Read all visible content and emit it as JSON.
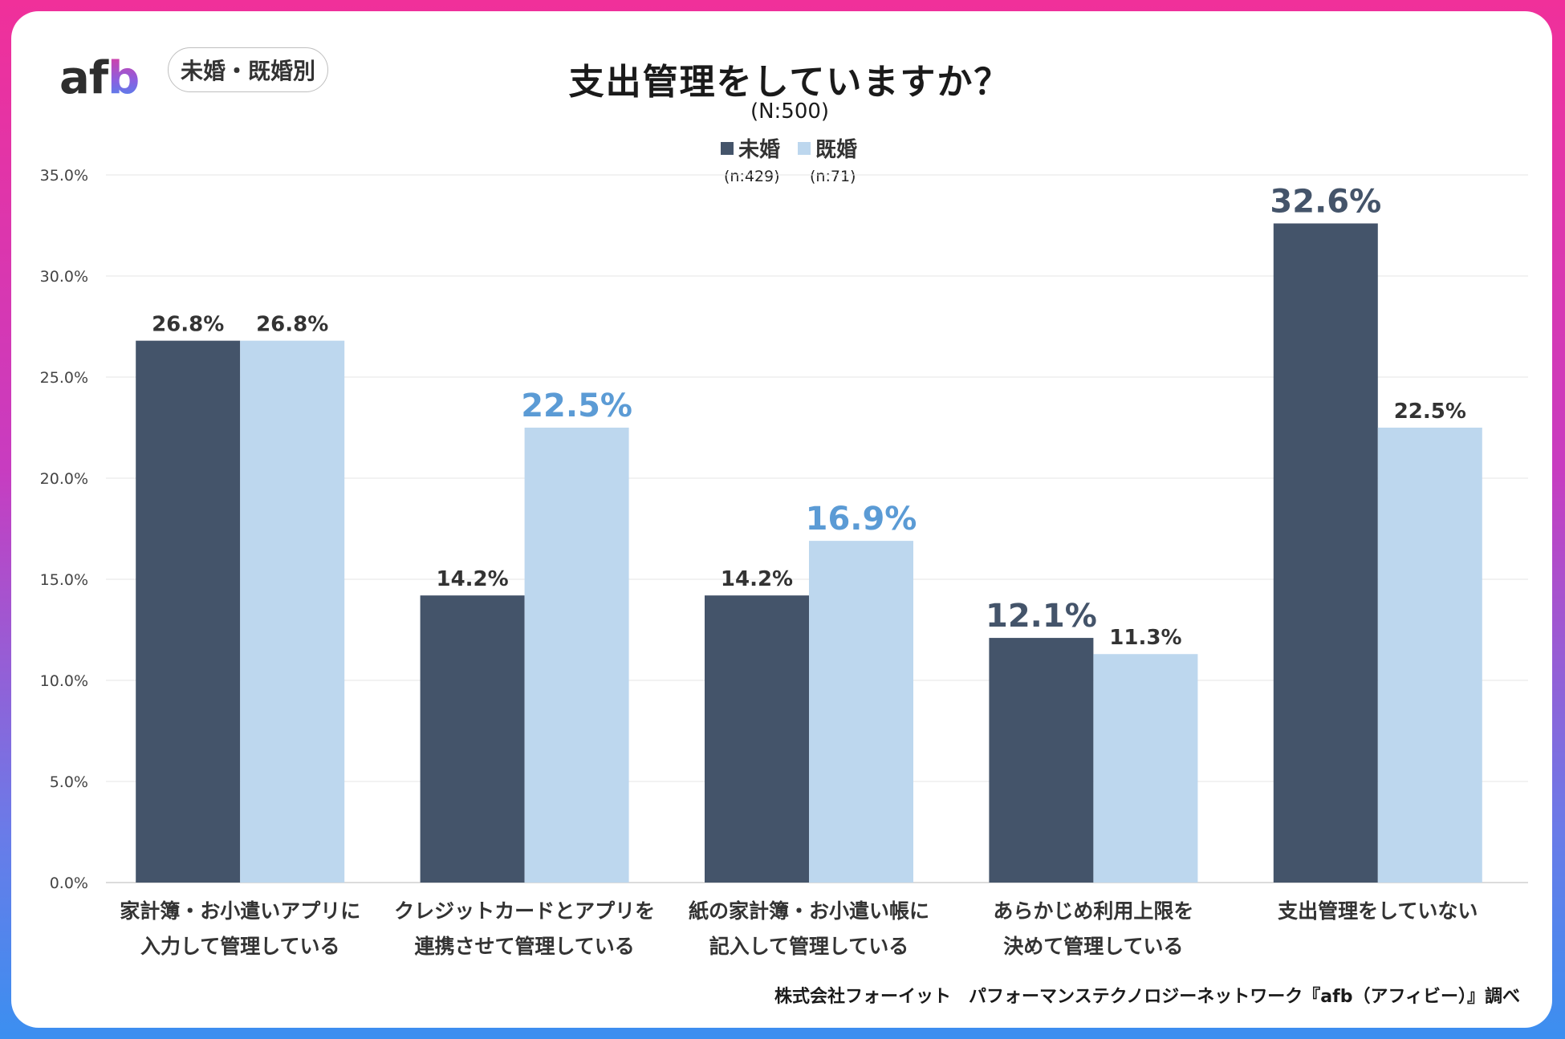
{
  "logo": {
    "a": "a",
    "f": "f",
    "b": "b"
  },
  "badge": "未婚・既婚別",
  "header": {
    "title": "支出管理をしていますか？",
    "subtitle": "(N:500)"
  },
  "legend": [
    {
      "label": "未婚",
      "n": "(n:429)",
      "color": "#44546a"
    },
    {
      "label": "既婚",
      "n": "(n:71)",
      "color": "#bdd7ee"
    }
  ],
  "footer": "株式会社フォーイット　パフォーマンステクノロジーネットワーク『afb（アフィビー）』調べ",
  "chart_data": {
    "type": "bar",
    "title": "支出管理をしていますか？",
    "categories": [
      [
        "家計簿・お小遣いアプリに",
        "入力して管理している"
      ],
      [
        "クレジットカードとアプリを",
        "連携させて管理している"
      ],
      [
        "紙の家計簿・お小遣い帳に",
        "記入して管理している"
      ],
      [
        "あらかじめ利用上限を",
        "決めて管理している"
      ],
      [
        "支出管理をしていない"
      ]
    ],
    "series": [
      {
        "name": "未婚",
        "color": "#44546a",
        "values": [
          26.8,
          14.2,
          14.2,
          12.1,
          32.6
        ],
        "labels": [
          "26.8%",
          "14.2%",
          "14.2%",
          "12.1%",
          "32.6%"
        ],
        "highlight": [
          false,
          false,
          false,
          true,
          true
        ],
        "highlight_color": "#44546a"
      },
      {
        "name": "既婚",
        "color": "#bdd7ee",
        "values": [
          26.8,
          22.5,
          16.9,
          11.3,
          22.5
        ],
        "labels": [
          "26.8%",
          "22.5%",
          "16.9%",
          "11.3%",
          "22.5%"
        ],
        "highlight": [
          false,
          true,
          true,
          false,
          false
        ],
        "highlight_color": "#5b9bd5"
      }
    ],
    "yticks": [
      "0.0%",
      "5.0%",
      "10.0%",
      "15.0%",
      "20.0%",
      "25.0%",
      "30.0%",
      "35.0%"
    ],
    "ylim": [
      0,
      35
    ],
    "grid": true,
    "label_color": "#333333"
  }
}
